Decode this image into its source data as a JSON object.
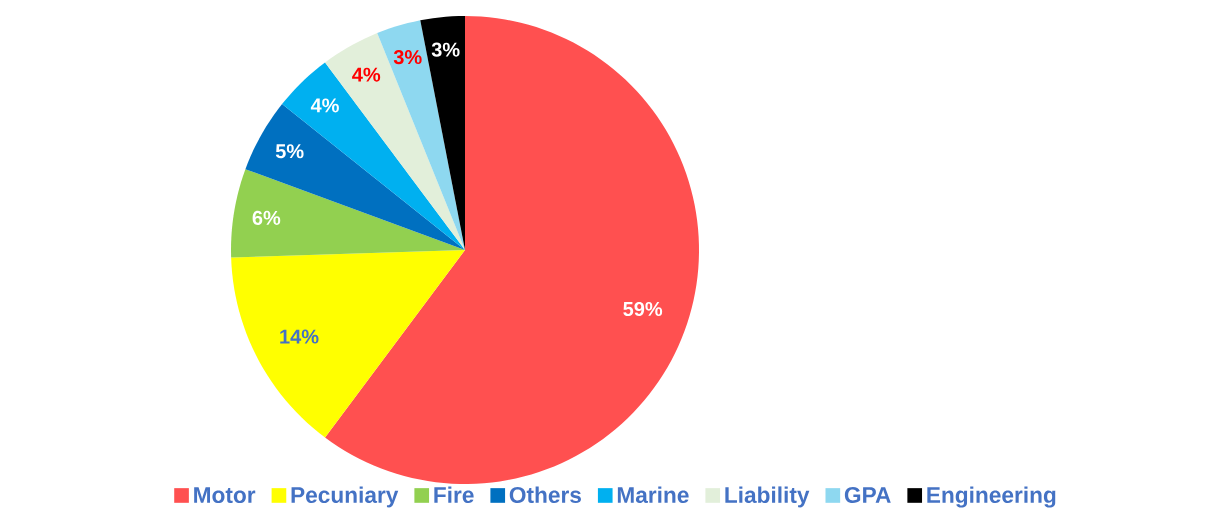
{
  "chart_data": {
    "type": "pie",
    "categories": [
      "Motor",
      "Pecuniary",
      "Fire",
      "Others",
      "Marine",
      "Liability",
      "GPA",
      "Engineering"
    ],
    "values": [
      59,
      14,
      6,
      5,
      4,
      4,
      3,
      3
    ],
    "value_labels": [
      "59%",
      "14%",
      "6%",
      "5%",
      "4%",
      "4%",
      "3%",
      "3%"
    ],
    "colors": [
      "#ff5050",
      "#ffff00",
      "#92d050",
      "#0070c0",
      "#00b0f0",
      "#e2efda",
      "#8ed8f0",
      "#000000"
    ],
    "legend": "bottom"
  }
}
